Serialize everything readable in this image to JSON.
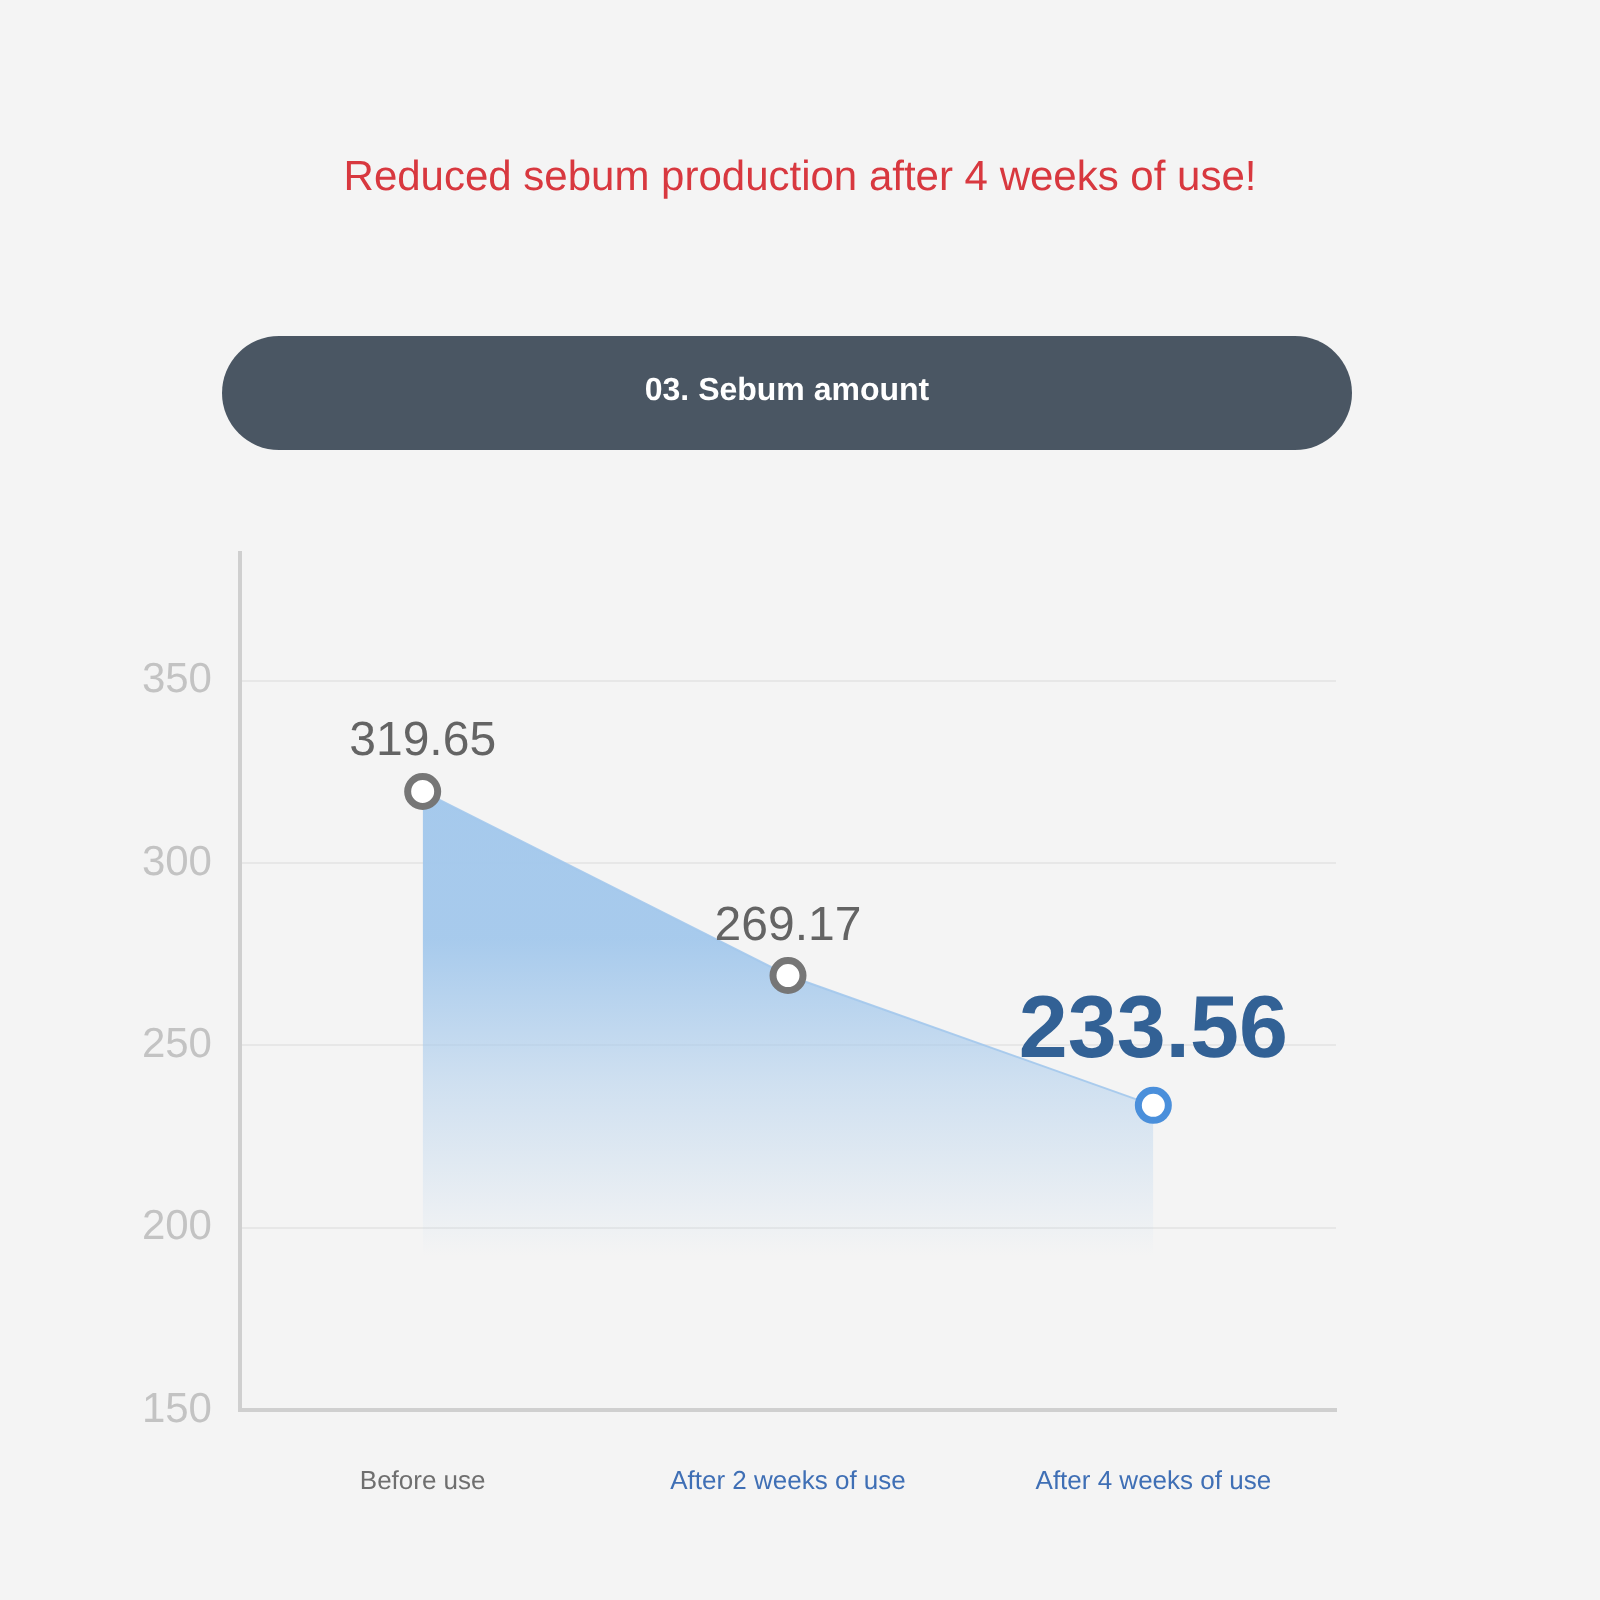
{
  "chart_data": {
    "type": "area",
    "title": "Reduced sebum production after 4 weeks of use!",
    "subtitle": "03. Sebum amount",
    "categories": [
      "Before use",
      "After 2 weeks of use",
      "After 4 weeks of use"
    ],
    "values": [
      319.65,
      269.17,
      233.56
    ],
    "color": "#a3c8ec",
    "colors": [
      "#767676",
      "#767676",
      "#4a8fdb"
    ],
    "ylim": [
      150,
      385
    ],
    "yticks": [
      150,
      200,
      250,
      300,
      350
    ],
    "grid": "y",
    "marker": "circle",
    "data_labels": true,
    "legend": false
  }
}
